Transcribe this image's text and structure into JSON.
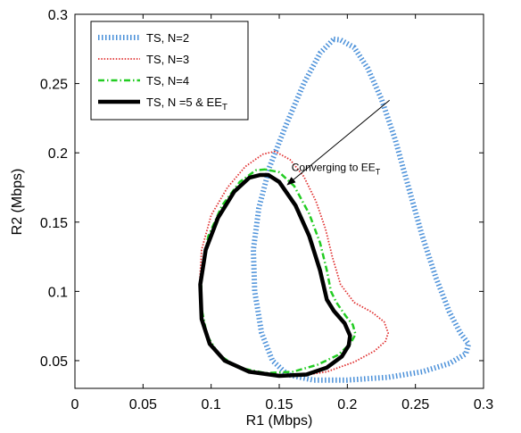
{
  "chart_data": {
    "type": "line",
    "title": "",
    "xlabel": "R1 (Mbps)",
    "ylabel": "R2 (Mbps)",
    "xlim": [
      0,
      0.3
    ],
    "ylim": [
      0.03,
      0.3
    ],
    "xticks": [
      0,
      0.05,
      0.1,
      0.15,
      0.2,
      0.25,
      0.3
    ],
    "xtick_labels": [
      "0",
      "0.05",
      "0.1",
      "0.15",
      "0.2",
      "0.25",
      "0.3"
    ],
    "yticks": [
      0.05,
      0.1,
      0.15,
      0.2,
      0.25,
      0.3
    ],
    "ytick_labels": [
      "0.05",
      "0.1",
      "0.15",
      "0.2",
      "0.25",
      "0.3"
    ],
    "grid": false,
    "legend_position": "top-left",
    "series": [
      {
        "name": "TS, N=2",
        "color": "#4a90d9",
        "style": "dotted-thick",
        "points": [
          [
            0.19,
            0.282
          ],
          [
            0.195,
            0.2815
          ],
          [
            0.205,
            0.276
          ],
          [
            0.215,
            0.261
          ],
          [
            0.225,
            0.239
          ],
          [
            0.235,
            0.21
          ],
          [
            0.245,
            0.175
          ],
          [
            0.255,
            0.14
          ],
          [
            0.265,
            0.11
          ],
          [
            0.275,
            0.085
          ],
          [
            0.283,
            0.07
          ],
          [
            0.289,
            0.062
          ],
          [
            0.287,
            0.055
          ],
          [
            0.275,
            0.048
          ],
          [
            0.255,
            0.042
          ],
          [
            0.23,
            0.038
          ],
          [
            0.2,
            0.036
          ],
          [
            0.175,
            0.036
          ],
          [
            0.156,
            0.04
          ],
          [
            0.145,
            0.05
          ],
          [
            0.137,
            0.07
          ],
          [
            0.132,
            0.1
          ],
          [
            0.131,
            0.13
          ],
          [
            0.135,
            0.16
          ],
          [
            0.143,
            0.19
          ],
          [
            0.155,
            0.22
          ],
          [
            0.168,
            0.25
          ],
          [
            0.18,
            0.272
          ],
          [
            0.19,
            0.282
          ]
        ]
      },
      {
        "name": "TS, N=3",
        "color": "#e03030",
        "style": "dotted",
        "points": [
          [
            0.147,
            0.201
          ],
          [
            0.138,
            0.199
          ],
          [
            0.125,
            0.19
          ],
          [
            0.112,
            0.175
          ],
          [
            0.1,
            0.155
          ],
          [
            0.093,
            0.13
          ],
          [
            0.0915,
            0.105
          ],
          [
            0.0935,
            0.08
          ],
          [
            0.1,
            0.062
          ],
          [
            0.11,
            0.05
          ],
          [
            0.125,
            0.0425
          ],
          [
            0.145,
            0.039
          ],
          [
            0.165,
            0.039
          ],
          [
            0.185,
            0.042
          ],
          [
            0.205,
            0.049
          ],
          [
            0.22,
            0.057
          ],
          [
            0.228,
            0.064
          ],
          [
            0.23,
            0.07
          ],
          [
            0.227,
            0.078
          ],
          [
            0.218,
            0.085
          ],
          [
            0.205,
            0.092
          ],
          [
            0.195,
            0.105
          ],
          [
            0.189,
            0.125
          ],
          [
            0.184,
            0.145
          ],
          [
            0.177,
            0.165
          ],
          [
            0.168,
            0.183
          ],
          [
            0.158,
            0.195
          ],
          [
            0.147,
            0.201
          ]
        ]
      },
      {
        "name": "TS, N=4",
        "color": "#22cc22",
        "style": "dashdot",
        "points": [
          [
            0.14,
            0.188
          ],
          [
            0.133,
            0.1875
          ],
          [
            0.121,
            0.179
          ],
          [
            0.108,
            0.162
          ],
          [
            0.098,
            0.14
          ],
          [
            0.093,
            0.115
          ],
          [
            0.0925,
            0.09
          ],
          [
            0.097,
            0.068
          ],
          [
            0.106,
            0.054
          ],
          [
            0.12,
            0.045
          ],
          [
            0.14,
            0.041
          ],
          [
            0.16,
            0.042
          ],
          [
            0.178,
            0.047
          ],
          [
            0.193,
            0.054
          ],
          [
            0.202,
            0.062
          ],
          [
            0.206,
            0.069
          ],
          [
            0.204,
            0.076
          ],
          [
            0.199,
            0.082
          ],
          [
            0.192,
            0.092
          ],
          [
            0.188,
            0.1
          ],
          [
            0.185,
            0.115
          ],
          [
            0.18,
            0.135
          ],
          [
            0.172,
            0.156
          ],
          [
            0.161,
            0.176
          ],
          [
            0.15,
            0.186
          ],
          [
            0.14,
            0.188
          ]
        ]
      },
      {
        "name": "TS, N =5 & EE",
        "name_subscript": "T",
        "color": "#000000",
        "style": "solid-thick",
        "points": [
          [
            0.136,
            0.184
          ],
          [
            0.128,
            0.182
          ],
          [
            0.117,
            0.172
          ],
          [
            0.105,
            0.153
          ],
          [
            0.096,
            0.13
          ],
          [
            0.092,
            0.105
          ],
          [
            0.093,
            0.08
          ],
          [
            0.099,
            0.062
          ],
          [
            0.11,
            0.05
          ],
          [
            0.128,
            0.042
          ],
          [
            0.15,
            0.039
          ],
          [
            0.17,
            0.04
          ],
          [
            0.185,
            0.045
          ],
          [
            0.196,
            0.053
          ],
          [
            0.201,
            0.061
          ],
          [
            0.202,
            0.068
          ],
          [
            0.198,
            0.077
          ],
          [
            0.19,
            0.086
          ],
          [
            0.185,
            0.094
          ],
          [
            0.18,
            0.115
          ],
          [
            0.172,
            0.14
          ],
          [
            0.162,
            0.162
          ],
          [
            0.15,
            0.179
          ],
          [
            0.142,
            0.184
          ],
          [
            0.136,
            0.184
          ]
        ]
      }
    ],
    "annotations": [
      {
        "text": "Converging to EE",
        "subscript": "T",
        "text_anchor": [
          0.159,
          0.187
        ],
        "arrow_from": [
          0.231,
          0.238
        ],
        "arrow_to": [
          0.156,
          0.177
        ]
      }
    ]
  }
}
